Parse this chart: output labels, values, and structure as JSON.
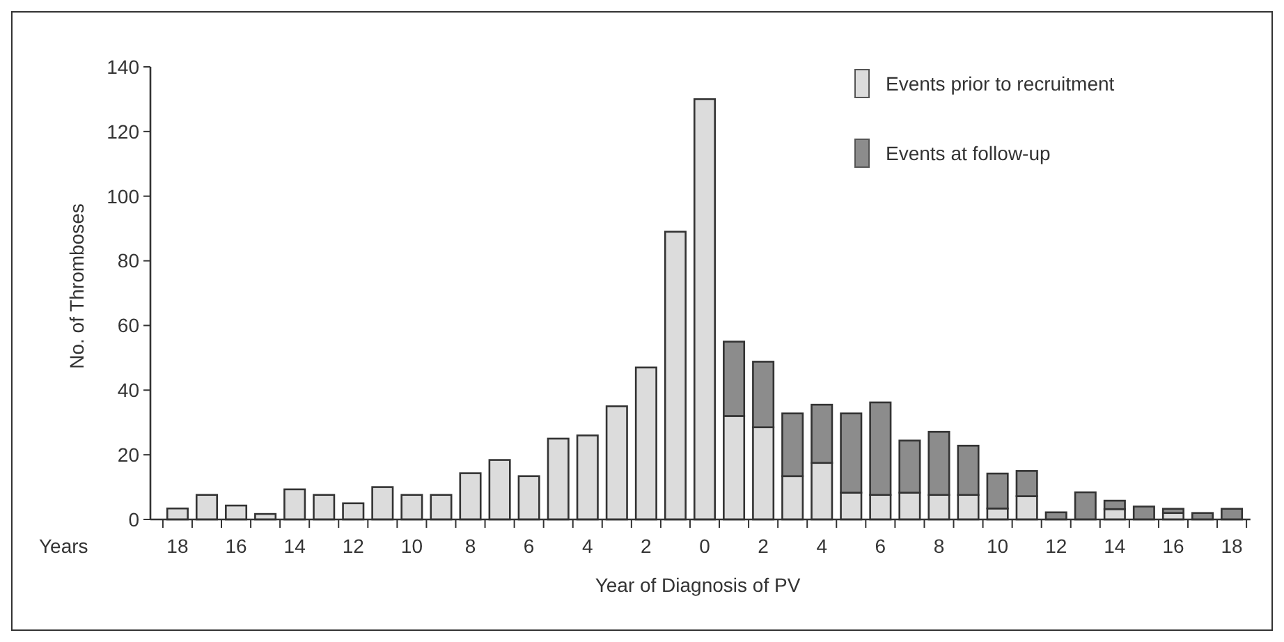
{
  "chart_data": {
    "type": "bar",
    "stacked": true,
    "xlabel": "Year of Diagnosis of PV",
    "ylabel": "No. of Thromboses",
    "annotations": [
      "Years"
    ],
    "categories": [
      "18",
      null,
      "16",
      null,
      "14",
      null,
      "12",
      null,
      "10",
      null,
      "8",
      null,
      "6",
      null,
      "4",
      null,
      "2",
      null,
      "0",
      null,
      "2",
      null,
      "4",
      null,
      "6",
      null,
      "8",
      null,
      "10",
      null,
      "12",
      null,
      "14",
      null,
      "16",
      null,
      "18"
    ],
    "series": [
      {
        "name": "Events prior to recruitment",
        "color": "#dcdcdc",
        "values": [
          3.4,
          7.6,
          4.3,
          1.7,
          9.3,
          7.6,
          5,
          10,
          7.6,
          7.6,
          14.3,
          18.4,
          13.4,
          25,
          26,
          35,
          47,
          89,
          130,
          32,
          28.5,
          13.4,
          17.5,
          8.3,
          7.6,
          8.3,
          7.6,
          7.6,
          3.4,
          7.2,
          null,
          0,
          3.2,
          null,
          2,
          0,
          0
        ]
      },
      {
        "name": "Events at follow-up",
        "color": "#8c8c8c",
        "values": [
          0,
          0,
          0,
          0,
          0,
          0,
          0,
          0,
          0,
          0,
          0,
          0,
          0,
          0,
          0,
          0,
          0,
          0,
          0,
          23,
          20.3,
          19.4,
          18,
          24.5,
          28.6,
          16.1,
          19.5,
          15.2,
          10.8,
          7.8,
          2.2,
          8.4,
          2.6,
          4,
          1.3,
          2,
          3.3
        ]
      }
    ],
    "ylim": [
      0,
      140
    ],
    "yticks": [
      0,
      20,
      40,
      60,
      80,
      100,
      120,
      140
    ],
    "grid": false,
    "legend": "top right"
  }
}
